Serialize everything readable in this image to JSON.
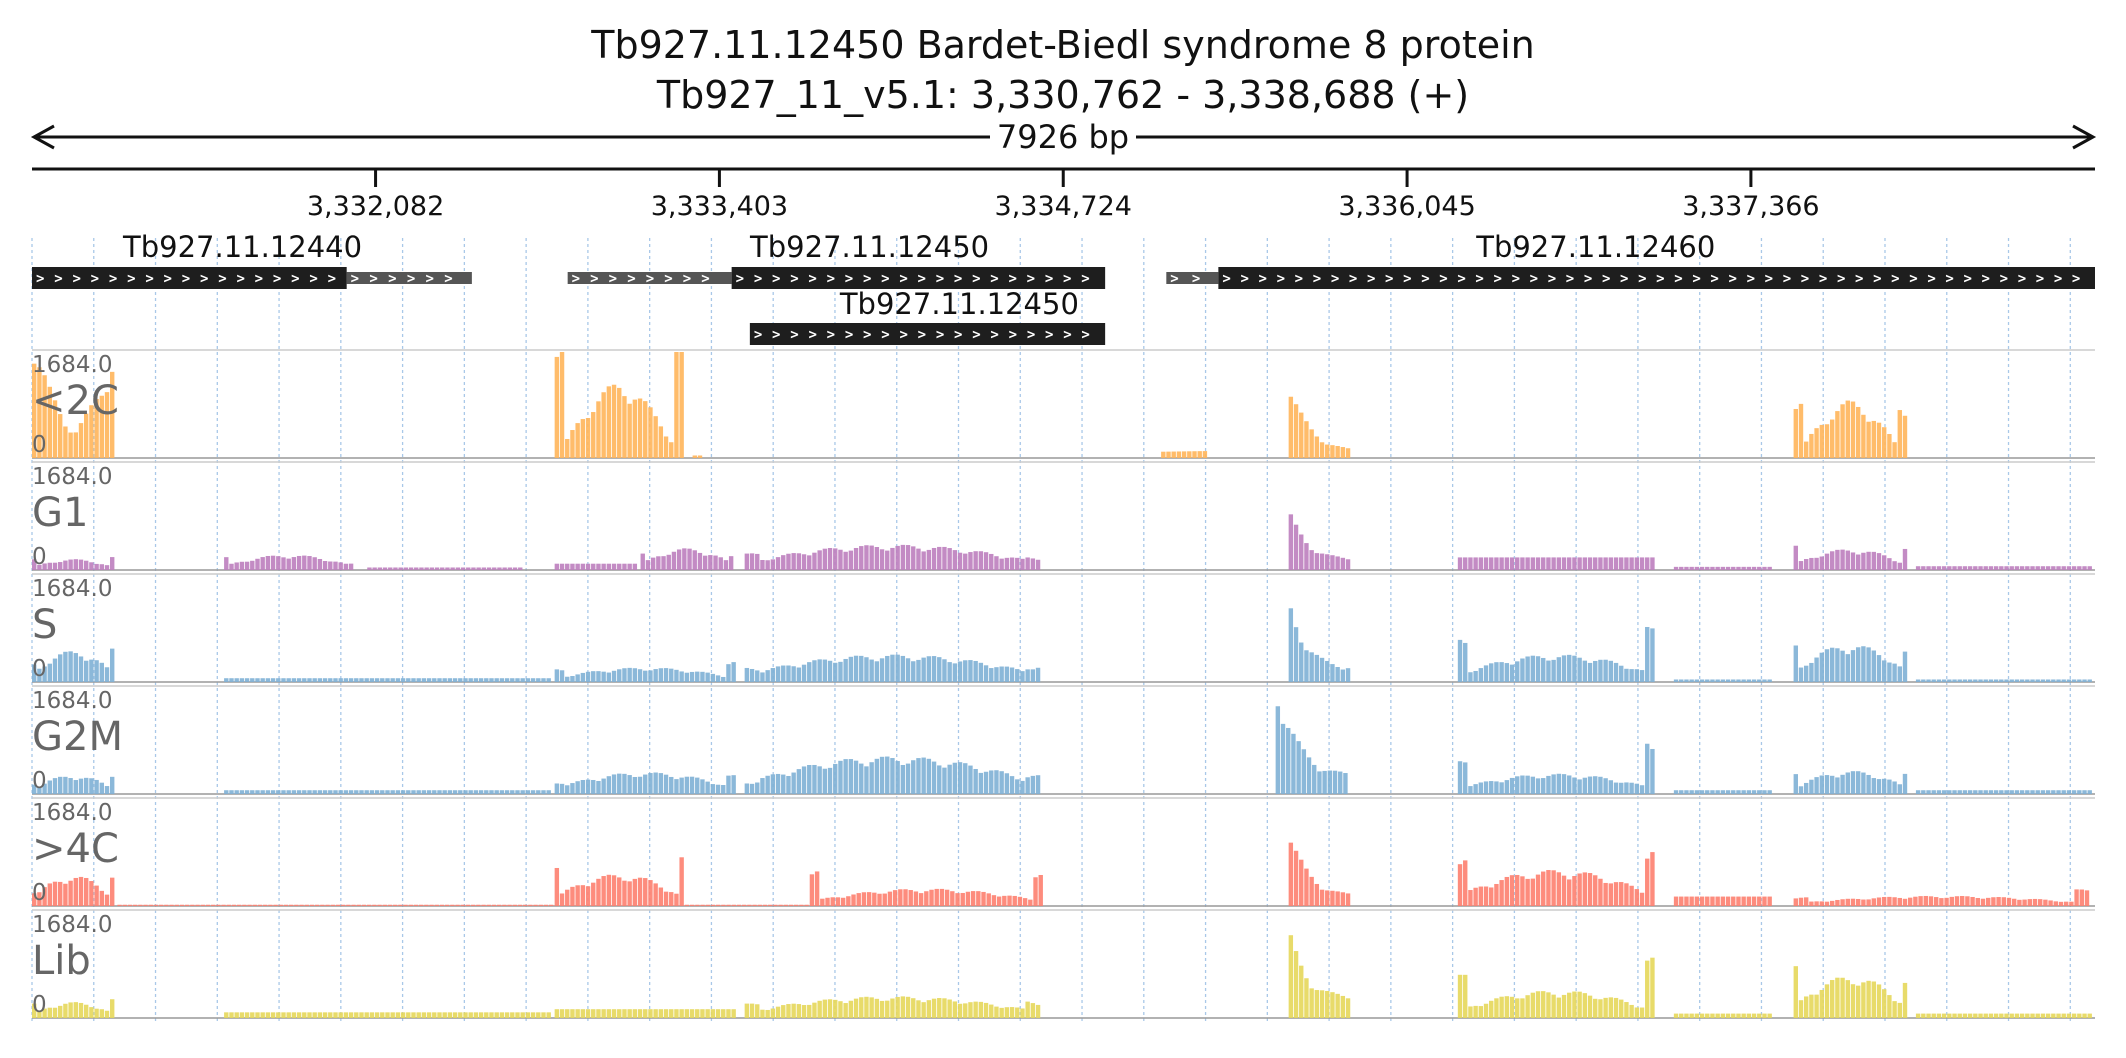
{
  "chart_data": {
    "type": "area",
    "title": "Tb927.11.12450  Bardet-Biedl syndrome 8 protein",
    "subtitle": "Tb927_11_v5.1: 3,330,762 - 3,338,688 (+)",
    "span_label": "7926 bp",
    "region": {
      "chrom": "Tb927_11_v5.1",
      "start": 3330762,
      "end": 3338688,
      "strand": "+"
    },
    "x_ticks": [
      {
        "pos": 3332082,
        "label": "3,332,082"
      },
      {
        "pos": 3333403,
        "label": "3,333,403"
      },
      {
        "pos": 3334724,
        "label": "3,334,724"
      },
      {
        "pos": 3336045,
        "label": "3,336,045"
      },
      {
        "pos": 3337366,
        "label": "3,337,366"
      }
    ],
    "genes": [
      {
        "name": "Tb927.11.12440",
        "label_at": 3331571,
        "row": 0,
        "utr": [
          [
            3331971,
            3332452
          ]
        ],
        "cds": [
          [
            3330762,
            3331971
          ]
        ]
      },
      {
        "name": "Tb927.11.12450",
        "label_at": 3333980,
        "row": 0,
        "utr": [
          [
            3332820,
            3333450
          ]
        ],
        "cds": [
          [
            3333450,
            3334885
          ]
        ]
      },
      {
        "name": "Tb927.11.12450",
        "label_at": 3334325,
        "row": 1,
        "utr": [],
        "cds": [
          [
            3333520,
            3334885
          ]
        ]
      },
      {
        "name": "Tb927.11.12460",
        "label_at": 3336770,
        "row": 0,
        "utr": [
          [
            3335120,
            3335320
          ]
        ],
        "cds": [
          [
            3335320,
            3338688
          ]
        ]
      }
    ],
    "ylim": [
      0,
      1684.0
    ],
    "y_max_label": "1684.0",
    "y_min_label": "0",
    "tracks": [
      {
        "name": "<2C",
        "color": "#ffb55a",
        "segments": [
          {
            "x": [
              3330762,
              3331090
            ],
            "v": [
              1200,
              1200
            ],
            "shape": "valley",
            "edges": [
              1400,
              1380
            ]
          },
          {
            "x": [
              3332770,
              3333270
            ],
            "v": [
              1684,
              1684
            ],
            "shape": "bowl",
            "edges": [
              1650,
              1684
            ],
            "mid": 1050
          },
          {
            "x": [
              3333300,
              3333350
            ],
            "v": [
              40,
              40
            ],
            "shape": "flat"
          },
          {
            "x": [
              3335100,
              3335290
            ],
            "v": [
              100,
              110
            ],
            "shape": "flat"
          },
          {
            "x": [
              3335590,
              3335830
            ],
            "v": [
              1000,
              420
            ],
            "shape": "decay",
            "edges": [
              1000,
              180
            ]
          },
          {
            "x": [
              3337530,
              3337970
            ],
            "v": [
              800,
              800
            ],
            "shape": "bowl",
            "edges": [
              800,
              760
            ],
            "mid": 800
          }
        ]
      },
      {
        "name": "G1",
        "color": "#bd7ebe",
        "segments": [
          {
            "x": [
              3330762,
              3331090
            ],
            "v": [
              150,
              100
            ],
            "shape": "hump",
            "edges": [
              150,
              180
            ],
            "mid": 150
          },
          {
            "x": [
              3331500,
              3332000
            ],
            "v": [
              150,
              150
            ],
            "shape": "hump",
            "edges": [
              180,
              90
            ],
            "mid": 210
          },
          {
            "x": [
              3332050,
              3332650
            ],
            "v": [
              40,
              40
            ],
            "shape": "flat"
          },
          {
            "x": [
              3332770,
              3333100
            ],
            "v": [
              100,
              100
            ],
            "shape": "flat"
          },
          {
            "x": [
              3333100,
              3333470
            ],
            "v": [
              250,
              250
            ],
            "shape": "hump",
            "edges": [
              230,
              200
            ],
            "mid": 300
          },
          {
            "x": [
              3333500,
              3334650
            ],
            "v": [
              250,
              250
            ],
            "shape": "hump",
            "edges": [
              230,
              180
            ],
            "mid": 350
          },
          {
            "x": [
              3335590,
              3335830
            ],
            "v": [
              780,
              300
            ],
            "shape": "decay",
            "edges": [
              780,
              340
            ]
          },
          {
            "x": [
              3336240,
              3337000
            ],
            "v": [
              200,
              200
            ],
            "shape": "flat",
            "edges": [
              420,
              500
            ]
          },
          {
            "x": [
              3337070,
              3337450
            ],
            "v": [
              50,
              50
            ],
            "shape": "flat"
          },
          {
            "x": [
              3337530,
              3337970
            ],
            "v": [
              220,
              220
            ],
            "shape": "hump",
            "edges": [
              340,
              320
            ],
            "mid": 290
          },
          {
            "x": [
              3338000,
              3338688
            ],
            "v": [
              60,
              60
            ],
            "shape": "flat"
          }
        ]
      },
      {
        "name": "S",
        "color": "#7eb0d5",
        "segments": [
          {
            "x": [
              3330762,
              3331090
            ],
            "v": [
              400,
              350
            ],
            "shape": "hump",
            "edges": [
              250,
              480
            ],
            "mid": 430
          },
          {
            "x": [
              3331500,
              3332770
            ],
            "v": [
              60,
              60
            ],
            "shape": "flat"
          },
          {
            "x": [
              3332770,
              3333470
            ],
            "v": [
              180,
              180
            ],
            "shape": "hump",
            "edges": [
              180,
              300
            ],
            "mid": 200
          },
          {
            "x": [
              3333500,
              3334650
            ],
            "v": [
              260,
              260
            ],
            "shape": "hump",
            "edges": [
              200,
              220
            ],
            "mid": 380
          },
          {
            "x": [
              3335590,
              3335830
            ],
            "v": [
              1050,
              400
            ],
            "shape": "decay",
            "edges": [
              1050,
              420
            ]
          },
          {
            "x": [
              3336240,
              3337000
            ],
            "v": [
              350,
              350
            ],
            "shape": "hump",
            "edges": [
              600,
              760
            ],
            "mid": 380
          },
          {
            "x": [
              3337070,
              3337450
            ],
            "v": [
              40,
              40
            ],
            "shape": "flat"
          },
          {
            "x": [
              3337530,
              3337970
            ],
            "v": [
              500,
              500
            ],
            "shape": "hump",
            "edges": [
              520,
              420
            ],
            "mid": 520
          },
          {
            "x": [
              3338000,
              3338688
            ],
            "v": [
              40,
              40
            ],
            "shape": "flat"
          }
        ]
      },
      {
        "name": "G2M",
        "color": "#7eb0d5",
        "segments": [
          {
            "x": [
              3330762,
              3331090
            ],
            "v": [
              250,
              200
            ],
            "shape": "hump",
            "edges": [
              160,
              300
            ],
            "mid": 260
          },
          {
            "x": [
              3331500,
              3332770
            ],
            "v": [
              60,
              60
            ],
            "shape": "flat"
          },
          {
            "x": [
              3332770,
              3333470
            ],
            "v": [
              220,
              220
            ],
            "shape": "hump",
            "edges": [
              180,
              260
            ],
            "mid": 300
          },
          {
            "x": [
              3333500,
              3334650
            ],
            "v": [
              330,
              330
            ],
            "shape": "hump",
            "edges": [
              180,
              260
            ],
            "mid": 520
          },
          {
            "x": [
              3335540,
              3335830
            ],
            "v": [
              1500,
              700
            ],
            "shape": "decay",
            "edges": [
              1500,
              540
            ]
          },
          {
            "x": [
              3336240,
              3337000
            ],
            "v": [
              280,
              280
            ],
            "shape": "hump",
            "edges": [
              560,
              760
            ],
            "mid": 280
          },
          {
            "x": [
              3337070,
              3337450
            ],
            "v": [
              60,
              60
            ],
            "shape": "flat"
          },
          {
            "x": [
              3337530,
              3337970
            ],
            "v": [
              300,
              300
            ],
            "shape": "hump",
            "edges": [
              340,
              300
            ],
            "mid": 320
          },
          {
            "x": [
              3338000,
              3338688
            ],
            "v": [
              60,
              60
            ],
            "shape": "flat"
          }
        ]
      },
      {
        "name": ">4C",
        "color": "#fd7f6f",
        "segments": [
          {
            "x": [
              3330762,
              3331090
            ],
            "v": [
              400,
              300
            ],
            "shape": "hump",
            "edges": [
              200,
              440
            ],
            "mid": 420
          },
          {
            "x": [
              3331090,
              3332770
            ],
            "v": [
              20,
              20
            ],
            "shape": "flat"
          },
          {
            "x": [
              3332770,
              3333270
            ],
            "v": [
              600,
              600
            ],
            "shape": "hump",
            "edges": [
              600,
              680
            ],
            "mid": 440
          },
          {
            "x": [
              3333270,
              3333750
            ],
            "v": [
              20,
              20
            ],
            "shape": "flat"
          },
          {
            "x": [
              3333750,
              3334650
            ],
            "v": [
              200,
              200
            ],
            "shape": "hump",
            "edges": [
              500,
              520
            ],
            "mid": 240
          },
          {
            "x": [
              3335590,
              3335830
            ],
            "v": [
              1000,
              400
            ],
            "shape": "decay",
            "edges": [
              1000,
              300
            ]
          },
          {
            "x": [
              3336240,
              3337000
            ],
            "v": [
              450,
              450
            ],
            "shape": "hump",
            "edges": [
              660,
              860
            ],
            "mid": 500
          },
          {
            "x": [
              3337070,
              3337450
            ],
            "v": [
              150,
              150
            ],
            "shape": "flat"
          },
          {
            "x": [
              3337530,
              3338688
            ],
            "v": [
              150,
              150
            ],
            "shape": "hump",
            "edges": [
              120,
              230
            ],
            "mid": 140
          }
        ]
      },
      {
        "name": "Lib",
        "color": "#e6d75a",
        "segments": [
          {
            "x": [
              3330762,
              3331090
            ],
            "v": [
              200,
              200
            ],
            "shape": "hump",
            "edges": [
              200,
              260
            ],
            "mid": 220
          },
          {
            "x": [
              3331500,
              3332770
            ],
            "v": [
              90,
              90
            ],
            "shape": "flat"
          },
          {
            "x": [
              3332770,
              3333470
            ],
            "v": [
              140,
              140
            ],
            "shape": "flat"
          },
          {
            "x": [
              3333500,
              3334650
            ],
            "v": [
              260,
              260
            ],
            "shape": "hump",
            "edges": [
              200,
              240
            ],
            "mid": 300
          },
          {
            "x": [
              3335590,
              3335830
            ],
            "v": [
              1150,
              600
            ],
            "shape": "decay",
            "edges": [
              1150,
              720
            ]
          },
          {
            "x": [
              3336240,
              3337000
            ],
            "v": [
              380,
              380
            ],
            "shape": "hump",
            "edges": [
              600,
              840
            ],
            "mid": 380
          },
          {
            "x": [
              3337070,
              3337450
            ],
            "v": [
              70,
              70
            ],
            "shape": "flat"
          },
          {
            "x": [
              3337530,
              3337970
            ],
            "v": [
              600,
              600
            ],
            "shape": "hump",
            "edges": [
              720,
              520
            ],
            "mid": 580
          },
          {
            "x": [
              3338000,
              3338688
            ],
            "v": [
              70,
              70
            ],
            "shape": "flat"
          }
        ]
      }
    ]
  }
}
